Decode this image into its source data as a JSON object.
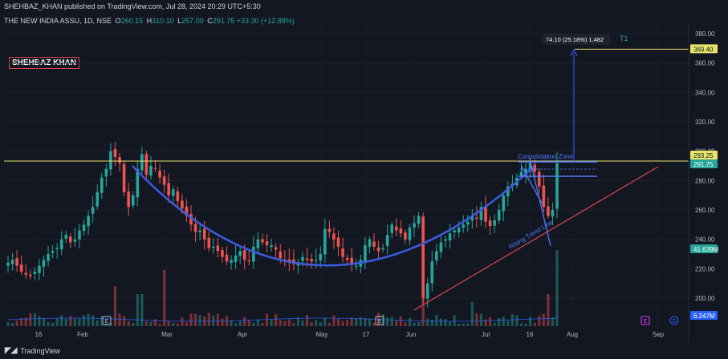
{
  "header": {
    "published": "SHEHBAZ_KHAN published on TradingView.com, Jul 28, 2024 20:29 UTC+5:30",
    "symbol": "THE NEW INDIA ASSU, 1D, NSE",
    "o_key": "O",
    "o_val": "260.15",
    "h_key": "H",
    "h_val": "310.10",
    "l_key": "L",
    "l_val": "257.00",
    "c_key": "C",
    "c_val": "291.75",
    "change": "+33.30 (+12.88%)"
  },
  "author_label": "SHEHBAZ KHAN",
  "footer": {
    "brand": "TradingView"
  },
  "colors": {
    "background": "#131722",
    "up": "#26a69a",
    "down": "#ef5350",
    "curve": "#3b5bdb",
    "trend": "#e04550",
    "level": "#e8e46a",
    "annotation": "#2962ff"
  },
  "chart_data": {
    "type": "candlestick",
    "y_axis": {
      "range": [
        184,
        392
      ],
      "ticks": [
        "380.00",
        "360.00",
        "340.00",
        "320.00",
        "300.00",
        "280.00",
        "260.00",
        "240.00",
        "220.00",
        "200.00"
      ],
      "tick_values": [
        380,
        360,
        340,
        320,
        300,
        280,
        260,
        240,
        220,
        200
      ]
    },
    "x_axis_labels": [
      "16",
      "Feb",
      "Mar",
      "Apr",
      "May",
      "17",
      "Jun",
      "Jul",
      "16",
      "Aug",
      "Sep"
    ],
    "price_labels": {
      "target": "369.40",
      "resistance": "293.25",
      "last": "291.75",
      "volume_ma": "41.639M",
      "volume": "6.247M"
    },
    "levels": [
      {
        "name": "target",
        "value": 369.4
      },
      {
        "name": "resistance",
        "value": 293.25
      }
    ],
    "measure_label": "74.10 (25.18%) 1,482",
    "target_label": "T1",
    "annotations": [
      "Consolidation Zone",
      "Rising Trend Line"
    ],
    "event_markers": [
      "E",
      "E",
      "D"
    ],
    "closes": [
      224,
      226,
      222,
      218,
      216,
      215,
      218,
      222,
      226,
      230,
      232,
      234,
      240,
      243,
      238,
      240,
      246,
      250,
      256,
      262,
      272,
      282,
      288,
      300,
      296,
      292,
      272,
      262,
      270,
      288,
      298,
      284,
      290,
      288,
      282,
      277,
      270,
      274,
      266,
      261,
      256,
      250,
      245,
      246,
      240,
      234,
      235,
      232,
      228,
      225,
      226,
      229,
      232,
      226,
      225,
      235,
      240,
      238,
      236,
      236,
      233,
      227,
      226,
      225,
      223,
      224,
      228,
      226,
      225,
      226,
      230,
      247,
      245,
      240,
      235,
      228,
      226,
      223,
      222,
      226,
      236,
      240,
      235,
      232,
      234,
      243,
      250,
      246,
      244,
      240,
      248,
      251,
      256,
      200,
      210,
      225,
      232,
      238,
      240,
      244,
      246,
      248,
      250,
      252,
      256,
      254,
      262,
      252,
      249,
      253,
      260,
      270,
      276,
      278,
      282,
      286,
      288,
      292,
      286,
      276,
      262,
      256,
      260,
      291.75
    ]
  }
}
